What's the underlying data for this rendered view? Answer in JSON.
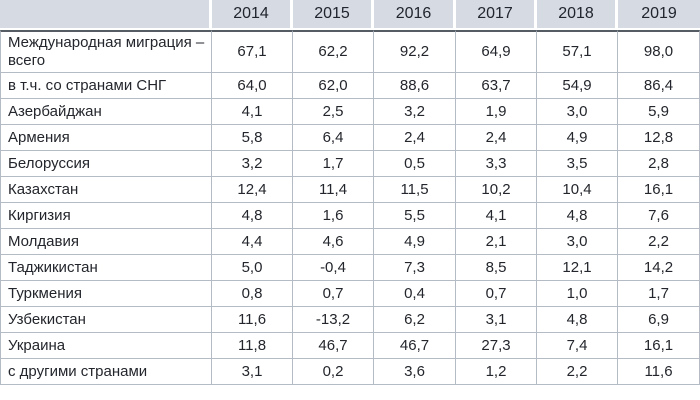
{
  "table": {
    "corner_label": "",
    "years": [
      "2014",
      "2015",
      "2016",
      "2017",
      "2018",
      "2019"
    ],
    "rows": [
      {
        "label": "Международная миграция – всего",
        "values": [
          "67,1",
          "62,2",
          "92,2",
          "64,9",
          "57,1",
          "98,0"
        ]
      },
      {
        "label": "в т.ч. со странами СНГ",
        "values": [
          "64,0",
          "62,0",
          "88,6",
          "63,7",
          "54,9",
          "86,4"
        ]
      },
      {
        "label": "Азербайджан",
        "values": [
          "4,1",
          "2,5",
          "3,2",
          "1,9",
          "3,0",
          "5,9"
        ]
      },
      {
        "label": "Армения",
        "values": [
          "5,8",
          "6,4",
          "2,4",
          "2,4",
          "4,9",
          "12,8"
        ]
      },
      {
        "label": "Белоруссия",
        "values": [
          "3,2",
          "1,7",
          "0,5",
          "3,3",
          "3,5",
          "2,8"
        ]
      },
      {
        "label": "Казахстан",
        "values": [
          "12,4",
          "11,4",
          "11,5",
          "10,2",
          "10,4",
          "16,1"
        ]
      },
      {
        "label": "Киргизия",
        "values": [
          "4,8",
          "1,6",
          "5,5",
          "4,1",
          "4,8",
          "7,6"
        ]
      },
      {
        "label": "Молдавия",
        "values": [
          "4,4",
          "4,6",
          "4,9",
          "2,1",
          "3,0",
          "2,2"
        ]
      },
      {
        "label": "Таджикистан",
        "values": [
          "5,0",
          "-0,4",
          "7,3",
          "8,5",
          "12,1",
          "14,2"
        ]
      },
      {
        "label": "Туркмения",
        "values": [
          "0,8",
          "0,7",
          "0,4",
          "0,7",
          "1,0",
          "1,7"
        ]
      },
      {
        "label": "Узбекистан",
        "values": [
          "11,6",
          "-13,2",
          "6,2",
          "3,1",
          "4,8",
          "6,9"
        ]
      },
      {
        "label": "Украина",
        "values": [
          "11,8",
          "46,7",
          "46,7",
          "27,3",
          "7,4",
          "16,1"
        ]
      },
      {
        "label": "с другими странами",
        "values": [
          "3,1",
          "0,2",
          "3,6",
          "1,2",
          "2,2",
          "11,6"
        ]
      }
    ],
    "colors": {
      "header_bg": "#d5dae3",
      "header_text": "#21252e",
      "body_text": "#23262c",
      "grid_line": "#b5bbc5",
      "header_underline": "#565c64"
    }
  },
  "chart_data": {
    "type": "table",
    "categories": [
      "2014",
      "2015",
      "2016",
      "2017",
      "2018",
      "2019"
    ],
    "series": [
      {
        "name": "Международная миграция – всего",
        "values": [
          67.1,
          62.2,
          92.2,
          64.9,
          57.1,
          98.0
        ]
      },
      {
        "name": "в т.ч. со странами СНГ",
        "values": [
          64.0,
          62.0,
          88.6,
          63.7,
          54.9,
          86.4
        ]
      },
      {
        "name": "Азербайджан",
        "values": [
          4.1,
          2.5,
          3.2,
          1.9,
          3.0,
          5.9
        ]
      },
      {
        "name": "Армения",
        "values": [
          5.8,
          6.4,
          2.4,
          2.4,
          4.9,
          12.8
        ]
      },
      {
        "name": "Белоруссия",
        "values": [
          3.2,
          1.7,
          0.5,
          3.3,
          3.5,
          2.8
        ]
      },
      {
        "name": "Казахстан",
        "values": [
          12.4,
          11.4,
          11.5,
          10.2,
          10.4,
          16.1
        ]
      },
      {
        "name": "Киргизия",
        "values": [
          4.8,
          1.6,
          5.5,
          4.1,
          4.8,
          7.6
        ]
      },
      {
        "name": "Молдавия",
        "values": [
          4.4,
          4.6,
          4.9,
          2.1,
          3.0,
          2.2
        ]
      },
      {
        "name": "Таджикистан",
        "values": [
          5.0,
          -0.4,
          7.3,
          8.5,
          12.1,
          14.2
        ]
      },
      {
        "name": "Туркмения",
        "values": [
          0.8,
          0.7,
          0.4,
          0.7,
          1.0,
          1.7
        ]
      },
      {
        "name": "Узбекистан",
        "values": [
          11.6,
          -13.2,
          6.2,
          3.1,
          4.8,
          6.9
        ]
      },
      {
        "name": "Украина",
        "values": [
          11.8,
          46.7,
          46.7,
          27.3,
          7.4,
          16.1
        ]
      },
      {
        "name": "с другими странами",
        "values": [
          3.1,
          0.2,
          3.6,
          1.2,
          2.2,
          11.6
        ]
      }
    ],
    "title": "",
    "xlabel": "",
    "ylabel": "",
    "notes": "decimal comma formatting in source table"
  }
}
